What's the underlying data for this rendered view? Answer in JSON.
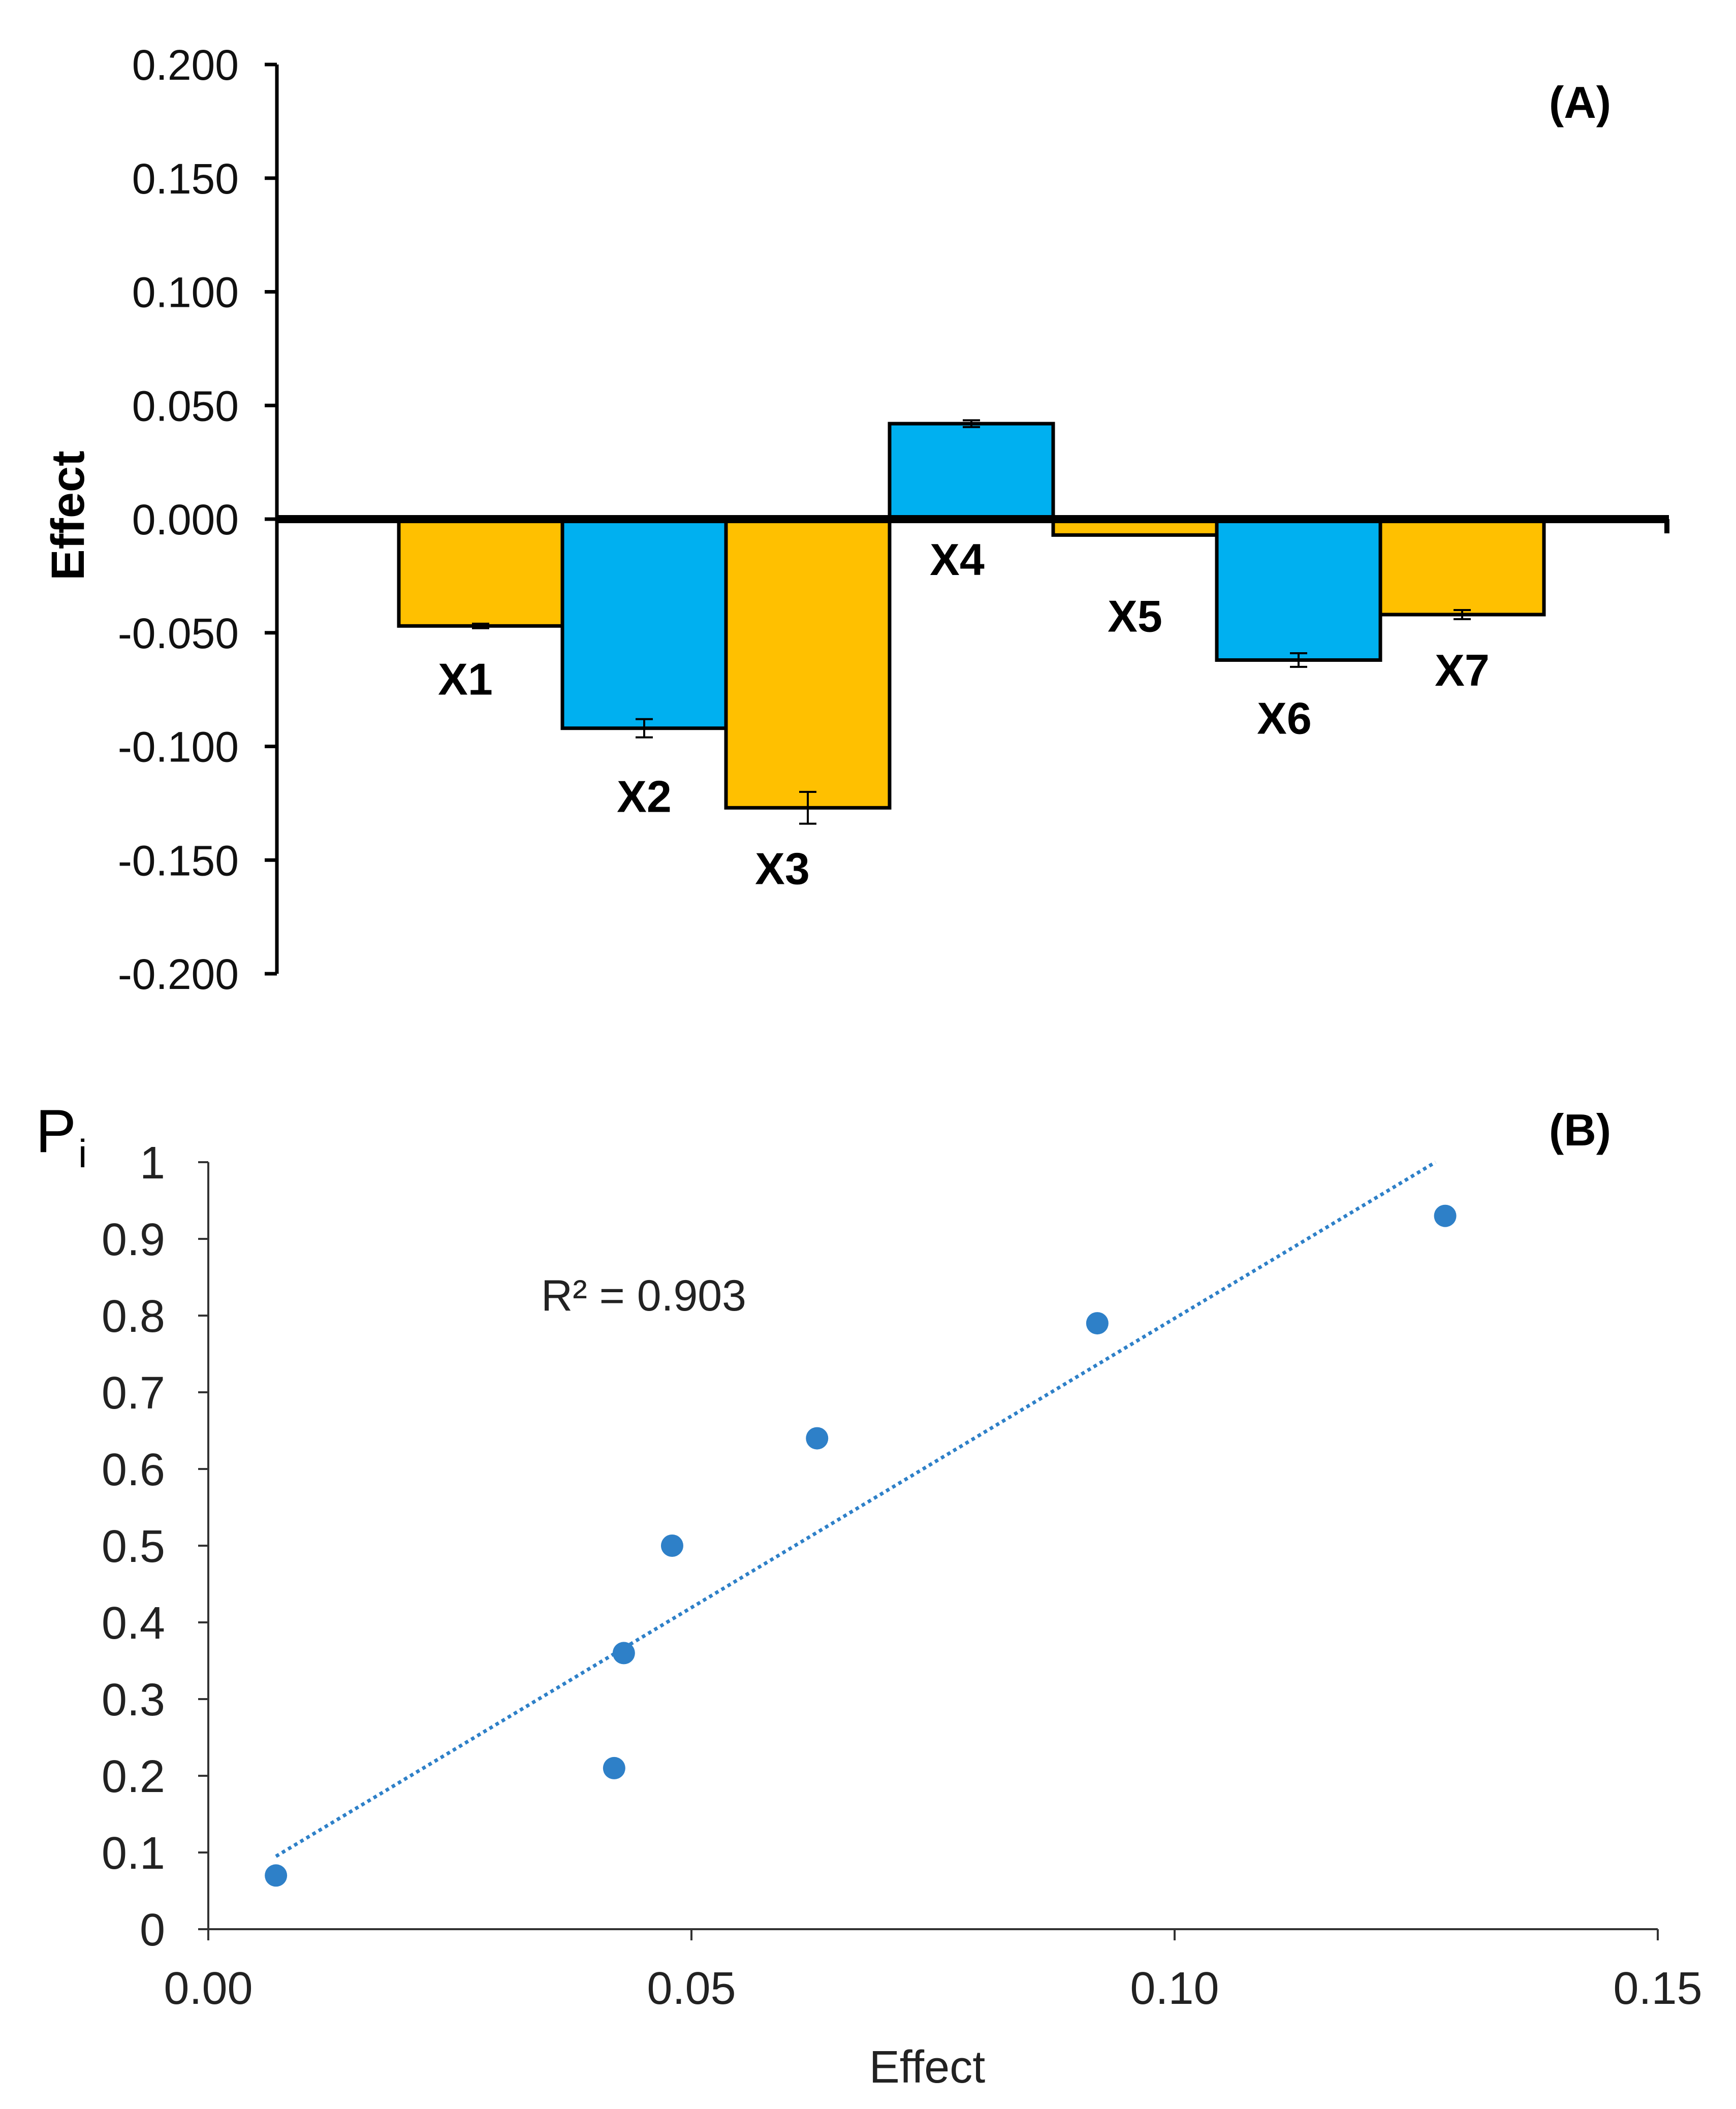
{
  "colors": {
    "yellow": "#FFC000",
    "blue": "#00B0F0",
    "scatter": "#2E80C8",
    "ink": "#000000",
    "axis_gray": "#333333"
  },
  "chart_data": [
    {
      "panel": "(A)",
      "type": "bar",
      "ylabel": "Effect",
      "ylim": [
        -0.2,
        0.2
      ],
      "yticks": [
        "0.200",
        "0.150",
        "0.100",
        "0.050",
        "0.000",
        "-0.050",
        "-0.100",
        "-0.150",
        "-0.200"
      ],
      "ytick_values": [
        0.2,
        0.15,
        0.1,
        0.05,
        0,
        -0.05,
        -0.1,
        -0.15,
        -0.2
      ],
      "categories": [
        "X1",
        "X2",
        "X3",
        "X4",
        "X5",
        "X6",
        "X7"
      ],
      "values": [
        -0.047,
        -0.092,
        -0.127,
        0.042,
        -0.007,
        -0.062,
        -0.042
      ],
      "errors": [
        0.001,
        0.004,
        0.007,
        0.0015,
        0,
        0.003,
        0.002
      ],
      "bar_colors": [
        "yellow",
        "blue",
        "yellow",
        "blue",
        "yellow",
        "blue",
        "yellow"
      ]
    },
    {
      "panel": "(B)",
      "type": "scatter",
      "ylabel_main": "P",
      "ylabel_sub": "i",
      "xlabel": "Effect",
      "xlim": [
        0,
        0.15
      ],
      "ylim": [
        0,
        1
      ],
      "xticks": [
        "0.00",
        "0.05",
        "0.10",
        "0.15"
      ],
      "xtick_values": [
        0,
        0.05,
        0.1,
        0.15
      ],
      "yticks": [
        "0",
        "0.1",
        "0.2",
        "0.3",
        "0.4",
        "0.5",
        "0.6",
        "0.7",
        "0.8",
        "0.9",
        "1"
      ],
      "ytick_values": [
        0,
        0.1,
        0.2,
        0.3,
        0.4,
        0.5,
        0.6,
        0.7,
        0.8,
        0.9,
        1
      ],
      "points": [
        {
          "x": 0.007,
          "y": 0.07
        },
        {
          "x": 0.042,
          "y": 0.21
        },
        {
          "x": 0.043,
          "y": 0.36
        },
        {
          "x": 0.048,
          "y": 0.5
        },
        {
          "x": 0.063,
          "y": 0.64
        },
        {
          "x": 0.092,
          "y": 0.79
        },
        {
          "x": 0.128,
          "y": 0.93
        }
      ],
      "trendline": {
        "x0": 0.007,
        "y0": 0.095,
        "x1": 0.127,
        "y1": 1.0
      },
      "annotation": "R² = 0.903"
    }
  ]
}
